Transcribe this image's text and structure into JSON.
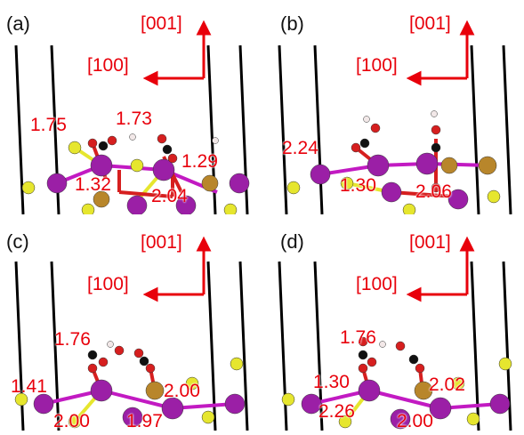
{
  "colors": {
    "axis": "#e8000b",
    "atom_purple": "#9b1fa6",
    "atom_yellow": "#e6e62e",
    "atom_brown": "#b8862b",
    "atom_red": "#d61f1f",
    "atom_black": "#111111",
    "atom_white": "#f2e8e8",
    "walls": "#000000"
  },
  "axes": {
    "vertical": "[001]",
    "horizontal": "[100]"
  },
  "panels": [
    {
      "id": "a",
      "label": "(a)",
      "distances": [
        "1.75",
        "1.73",
        "1.29",
        "1.32",
        "2.04"
      ]
    },
    {
      "id": "b",
      "label": "(b)",
      "distances": [
        "2.24",
        "1.30",
        "2.06"
      ]
    },
    {
      "id": "c",
      "label": "(c)",
      "distances": [
        "1.76",
        "1.41",
        "2.00",
        "2.00",
        "1.97"
      ]
    },
    {
      "id": "d",
      "label": "(d)",
      "distances": [
        "1.76",
        "1.30",
        "2.02",
        "2.26",
        "2.00"
      ]
    }
  ]
}
